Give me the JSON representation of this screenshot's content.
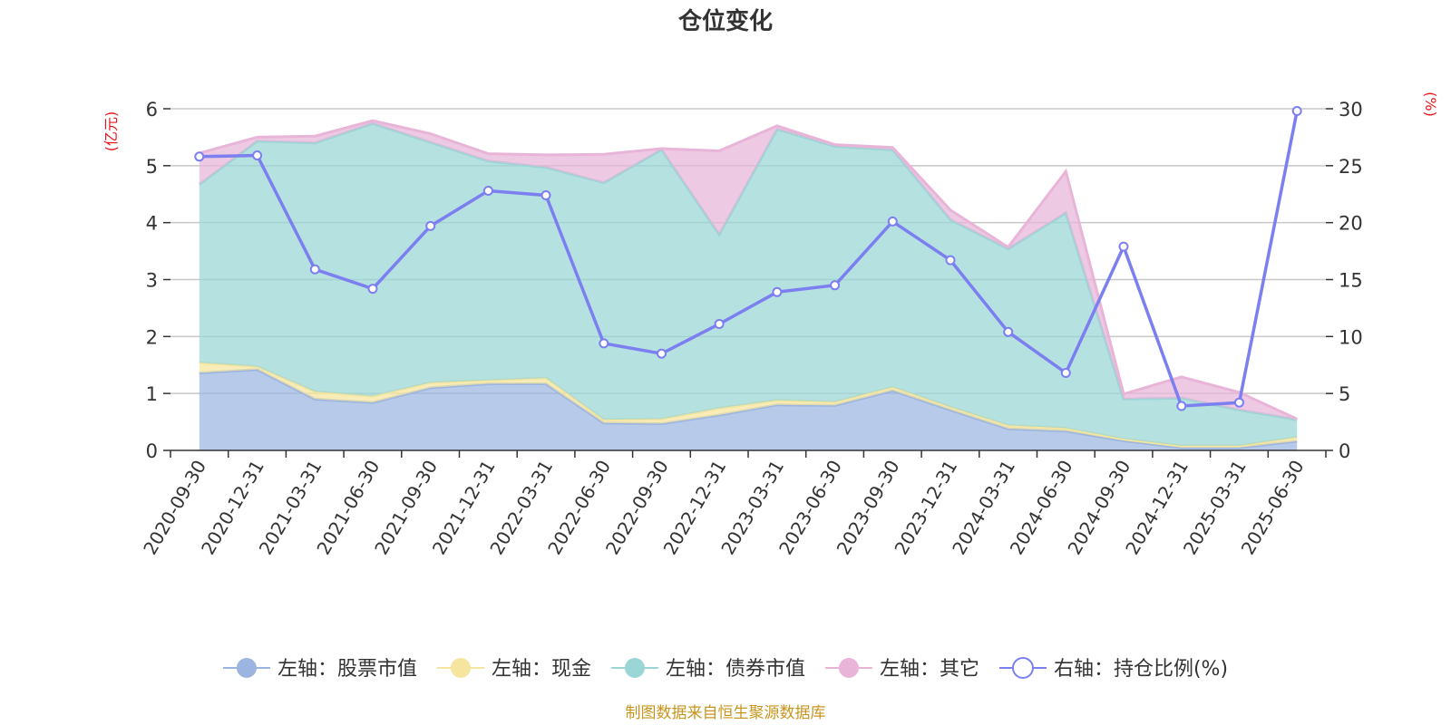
{
  "chart_data": {
    "type": "area",
    "title": "仓位变化",
    "left_unit": "(亿元)",
    "right_unit": "(%)",
    "left_ylim": [
      0,
      6
    ],
    "left_ticks": [
      "0",
      "1",
      "2",
      "3",
      "4",
      "5",
      "6"
    ],
    "right_ylim": [
      0,
      30
    ],
    "right_ticks": [
      "0",
      "5",
      "10",
      "15",
      "20",
      "25",
      "30"
    ],
    "grid": true,
    "legend_position": "bottom",
    "x": [
      "2020-09-30",
      "2020-12-31",
      "2021-03-31",
      "2021-06-30",
      "2021-09-30",
      "2021-12-31",
      "2022-03-31",
      "2022-06-30",
      "2022-09-30",
      "2022-12-31",
      "2023-03-31",
      "2023-06-30",
      "2023-09-30",
      "2023-12-31",
      "2024-03-31",
      "2024-06-30",
      "2024-09-30",
      "2024-12-31",
      "2025-03-31",
      "2025-06-30"
    ],
    "series": [
      {
        "name": "左轴：股票市值",
        "axis": "left",
        "kind": "area",
        "color": "#9bb5e0",
        "values": [
          1.36,
          1.42,
          0.9,
          0.84,
          1.1,
          1.17,
          1.17,
          0.48,
          0.47,
          0.62,
          0.8,
          0.79,
          1.05,
          0.71,
          0.38,
          0.34,
          0.17,
          0.05,
          0.05,
          0.16
        ]
      },
      {
        "name": "左轴：现金",
        "axis": "left",
        "kind": "area",
        "color": "#f5e59e",
        "values": [
          0.18,
          0.05,
          0.13,
          0.11,
          0.09,
          0.06,
          0.1,
          0.06,
          0.08,
          0.12,
          0.08,
          0.06,
          0.06,
          0.05,
          0.06,
          0.05,
          0.03,
          0.03,
          0.03,
          0.07
        ]
      },
      {
        "name": "左轴：债券市值",
        "axis": "left",
        "kind": "area",
        "color": "#9ad6d6",
        "values": [
          3.13,
          3.96,
          4.37,
          4.79,
          4.22,
          3.85,
          3.7,
          4.16,
          4.73,
          3.05,
          4.76,
          4.49,
          4.17,
          3.29,
          3.1,
          3.78,
          0.7,
          0.84,
          0.63,
          0.31
        ]
      },
      {
        "name": "左轴：其它",
        "axis": "left",
        "kind": "area",
        "color": "#e8b4d8",
        "values": [
          0.55,
          0.07,
          0.12,
          0.05,
          0.15,
          0.13,
          0.22,
          0.5,
          0.02,
          1.47,
          0.06,
          0.03,
          0.04,
          0.17,
          0.03,
          0.73,
          0.09,
          0.37,
          0.31,
          0.01
        ]
      },
      {
        "name": "右轴：持仓比例(%)",
        "axis": "right",
        "kind": "line",
        "color": "#7b7ff0",
        "values": [
          25.8,
          25.9,
          15.9,
          14.2,
          19.7,
          22.8,
          22.4,
          9.4,
          8.5,
          11.1,
          13.9,
          14.5,
          20.1,
          16.7,
          10.4,
          6.8,
          17.9,
          3.9,
          4.2,
          29.8
        ]
      }
    ],
    "source": "制图数据来自恒生聚源数据库"
  }
}
